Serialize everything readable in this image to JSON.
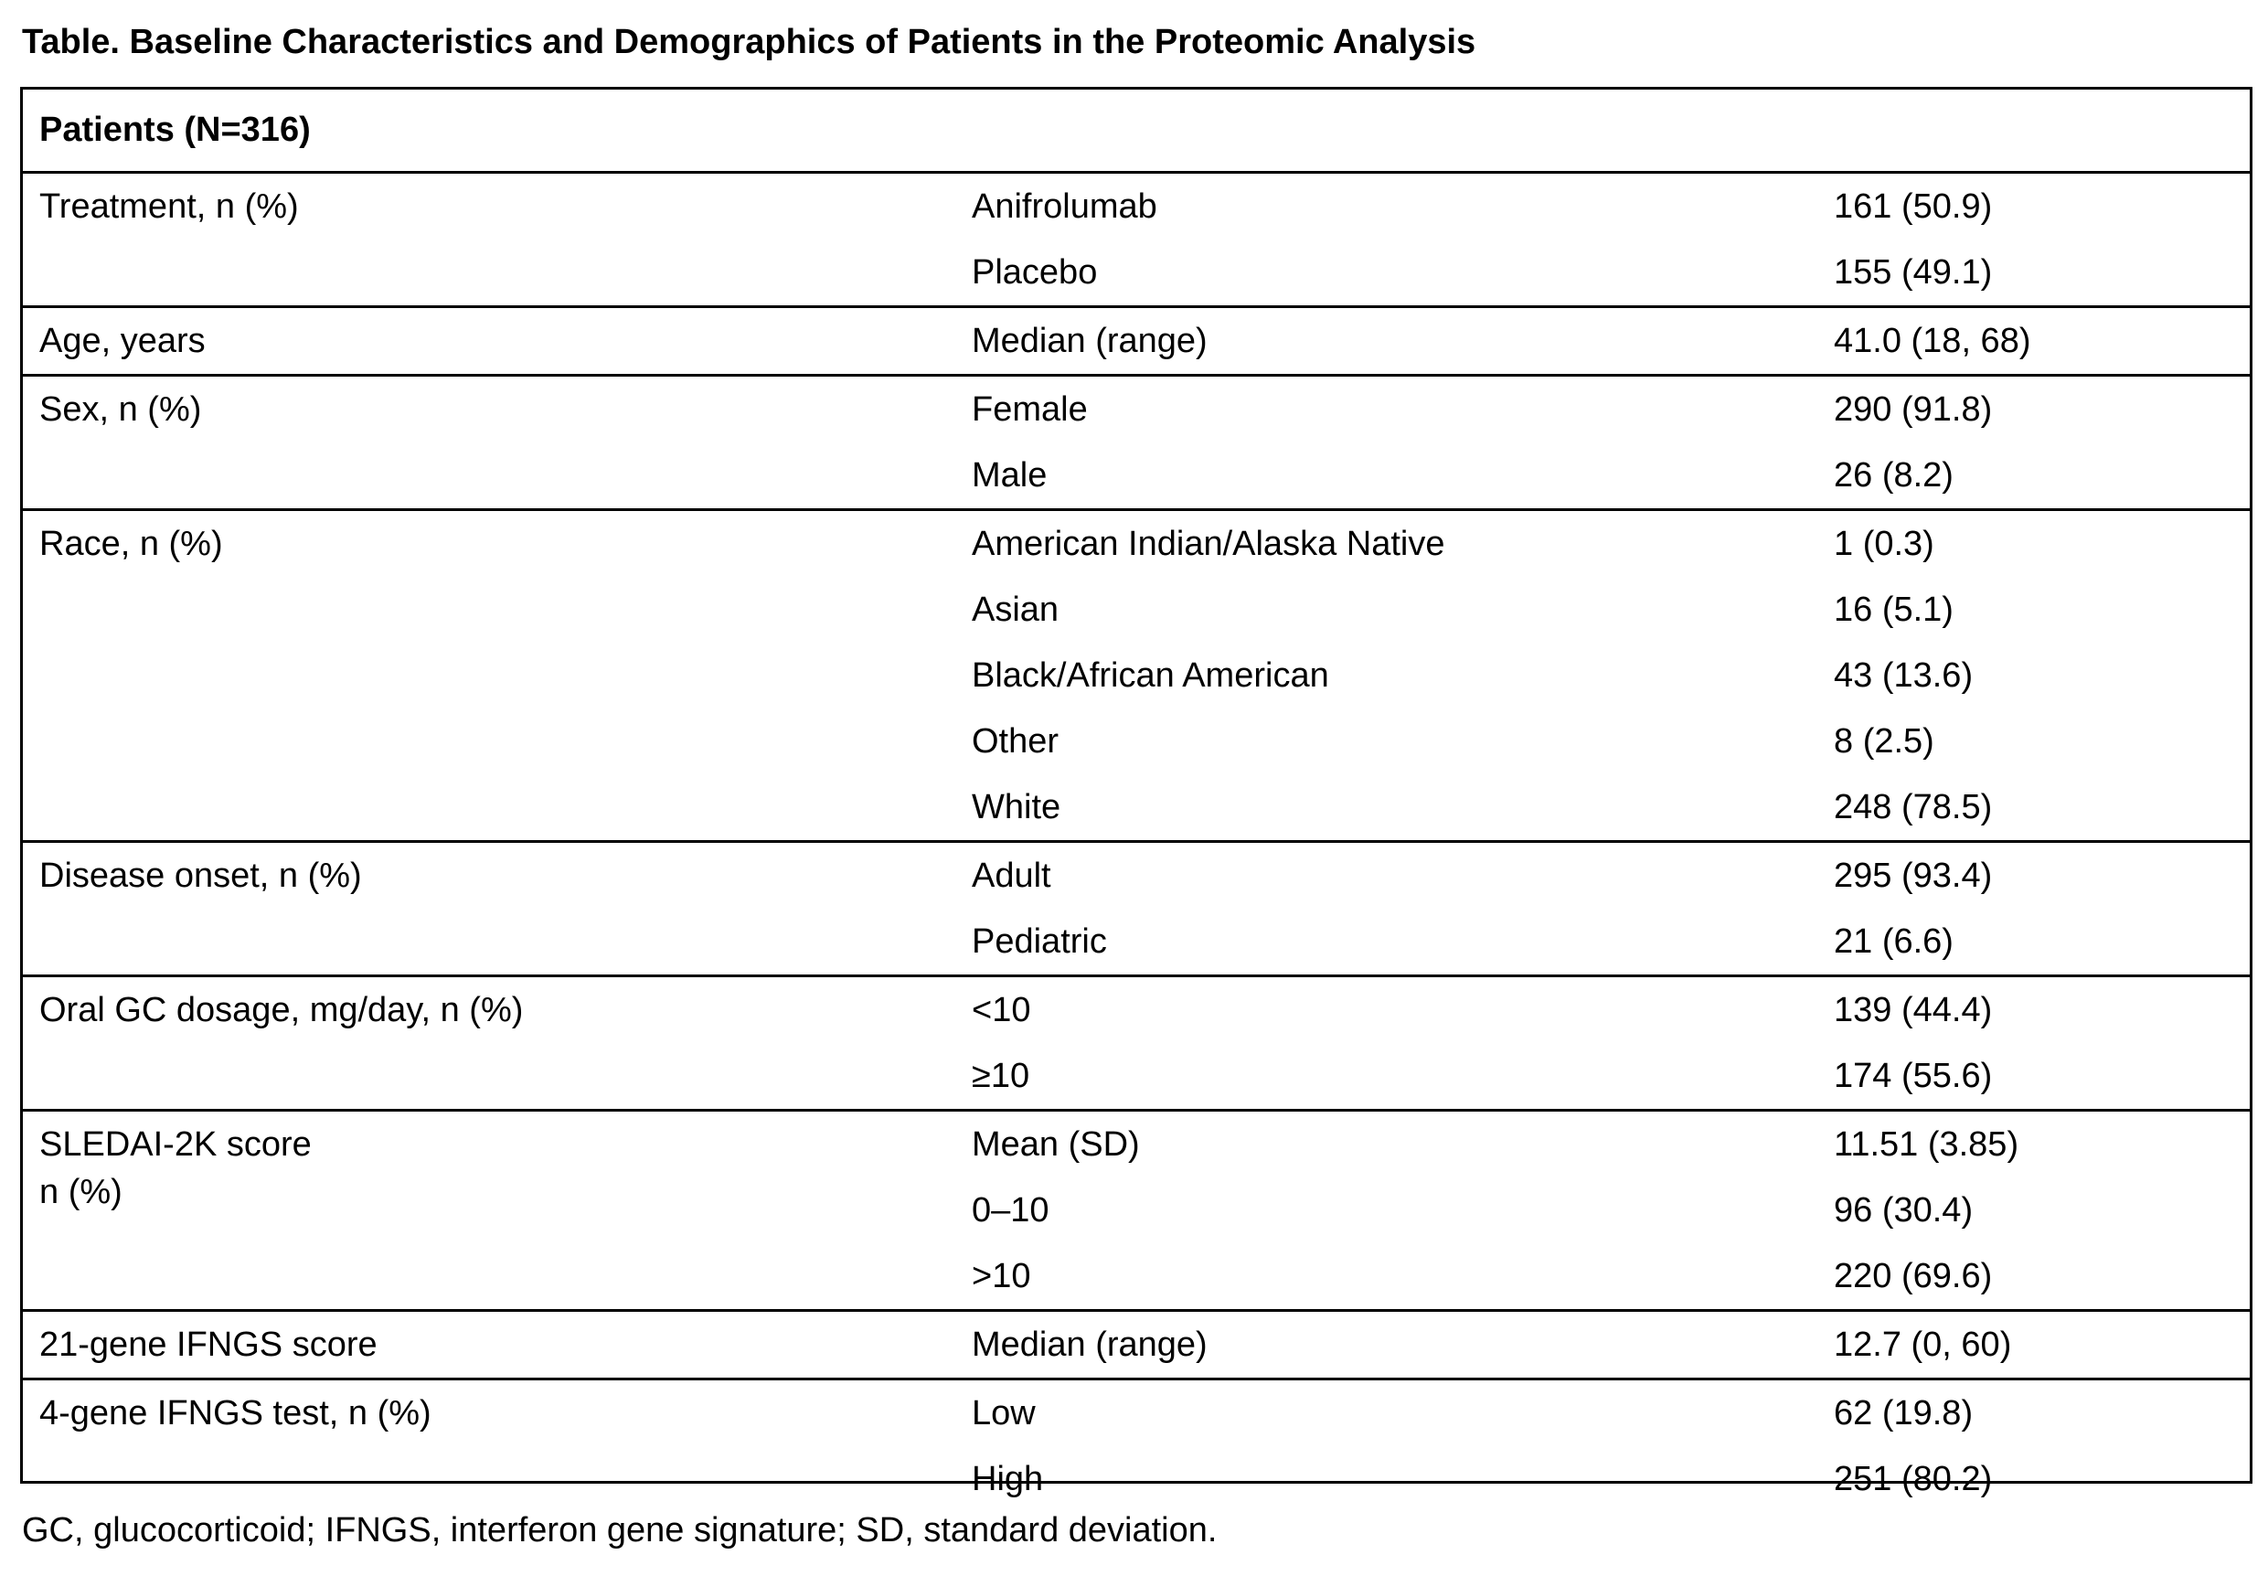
{
  "title": "Table. Baseline Characteristics and Demographics of Patients in the Proteomic Analysis",
  "header": "Patients (N=316)",
  "groups": [
    {
      "label": "Treatment, n (%)",
      "rows": [
        {
          "sub": "Anifrolumab",
          "value": "161 (50.9)"
        },
        {
          "sub": "Placebo",
          "value": "155 (49.1)"
        }
      ]
    },
    {
      "label": "Age, years",
      "rows": [
        {
          "sub": "Median (range)",
          "value": "41.0 (18, 68)"
        }
      ]
    },
    {
      "label": "Sex, n (%)",
      "rows": [
        {
          "sub": "Female",
          "value": "290 (91.8)"
        },
        {
          "sub": "Male",
          "value": "26 (8.2)"
        }
      ]
    },
    {
      "label": "Race, n (%)",
      "rows": [
        {
          "sub": "American Indian/Alaska Native",
          "value": "1 (0.3)"
        },
        {
          "sub": "Asian",
          "value": "16 (5.1)"
        },
        {
          "sub": "Black/African American",
          "value": "43 (13.6)"
        },
        {
          "sub": "Other",
          "value": "8 (2.5)"
        },
        {
          "sub": "White",
          "value": "248 (78.5)"
        }
      ]
    },
    {
      "label": "Disease onset, n (%)",
      "rows": [
        {
          "sub": "Adult",
          "value": "295 (93.4)"
        },
        {
          "sub": "Pediatric",
          "value": "21 (6.6)"
        }
      ]
    },
    {
      "label": "Oral GC dosage, mg/day, n (%)",
      "rows": [
        {
          "sub": "<10",
          "value": "139 (44.4)"
        },
        {
          "sub": "≥10",
          "value": "174 (55.6)"
        }
      ]
    },
    {
      "label": "SLEDAI-2K score\nn (%)",
      "rows": [
        {
          "sub": "Mean (SD)",
          "value": "11.51 (3.85)"
        },
        {
          "sub": "0–10",
          "value": "96 (30.4)"
        },
        {
          "sub": ">10",
          "value": "220 (69.6)"
        }
      ]
    },
    {
      "label": "21-gene IFNGS score",
      "rows": [
        {
          "sub": "Median (range)",
          "value": "12.7 (0, 60)"
        }
      ]
    },
    {
      "label": "4-gene IFNGS test, n (%)",
      "rows": [
        {
          "sub": "Low",
          "value": "62 (19.8)"
        },
        {
          "sub": "High",
          "value": "251 (80.2)"
        }
      ]
    }
  ],
  "footnote": "GC, glucocorticoid; IFNGS, interferon gene signature; SD, standard deviation."
}
